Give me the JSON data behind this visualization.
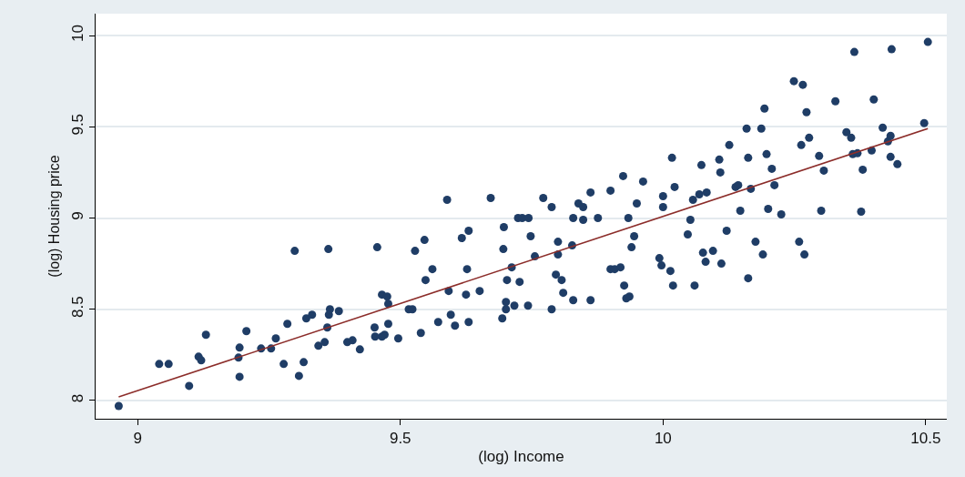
{
  "chart_data": {
    "type": "scatter",
    "xlabel": "(log) Income",
    "ylabel": "(log) Housing price",
    "xlim": [
      8.92,
      10.54
    ],
    "ylim": [
      7.9,
      10.12
    ],
    "xticks": [
      9,
      9.5,
      10,
      10.5
    ],
    "yticks": [
      8,
      8.5,
      9,
      9.5,
      10
    ],
    "grid": "y",
    "marker": "circle",
    "series": [
      {
        "color": "#1f3d66",
        "x": [
          8.964,
          9.041,
          9.059,
          9.098,
          9.116,
          9.121,
          9.13,
          9.192,
          9.194,
          9.194,
          9.207,
          9.235,
          9.254,
          9.263,
          9.278,
          9.285,
          9.299,
          9.307,
          9.316,
          9.321,
          9.332,
          9.344,
          9.356,
          9.361,
          9.363,
          9.364,
          9.366,
          9.383,
          9.399,
          9.409,
          9.423,
          9.451,
          9.452,
          9.456,
          9.465,
          9.465,
          9.47,
          9.475,
          9.477,
          9.477,
          9.496,
          9.516,
          9.523,
          9.528,
          9.539,
          9.546,
          9.548,
          9.561,
          9.572,
          9.589,
          9.592,
          9.596,
          9.604,
          9.617,
          9.625,
          9.627,
          9.63,
          9.63,
          9.651,
          9.672,
          9.694,
          9.696,
          9.697,
          9.701,
          9.701,
          9.703,
          9.712,
          9.717,
          9.724,
          9.727,
          9.732,
          9.743,
          9.744,
          9.748,
          9.756,
          9.772,
          9.788,
          9.788,
          9.796,
          9.8,
          9.8,
          9.807,
          9.81,
          9.829,
          9.827,
          9.829,
          9.839,
          9.848,
          9.848,
          9.862,
          9.862,
          9.876,
          9.9,
          9.9,
          9.908,
          9.919,
          9.924,
          9.926,
          9.93,
          9.934,
          9.936,
          9.94,
          9.945,
          9.95,
          9.962,
          9.993,
          9.997,
          10,
          10,
          10.017,
          10.022,
          10.014,
          10.019,
          10.047,
          10.052,
          10.057,
          10.06,
          10.069,
          10.073,
          10.076,
          10.081,
          10.083,
          10.095,
          10.107,
          10.109,
          10.111,
          10.121,
          10.126,
          10.138,
          10.143,
          10.147,
          10.159,
          10.162,
          10.162,
          10.167,
          10.176,
          10.187,
          10.19,
          10.193,
          10.197,
          10.2,
          10.207,
          10.212,
          10.225,
          10.249,
          10.259,
          10.263,
          10.266,
          10.273,
          10.269,
          10.278,
          10.297,
          10.301,
          10.306,
          10.328,
          10.349,
          10.358,
          10.361,
          10.364,
          10.37,
          10.377,
          10.38,
          10.397,
          10.401,
          10.418,
          10.428,
          10.433,
          10.433,
          10.435,
          10.446,
          10.497,
          10.504
        ],
        "values": [
          7.97,
          8.2,
          8.2,
          8.08,
          8.24,
          8.22,
          8.36,
          8.235,
          8.29,
          8.13,
          8.38,
          8.285,
          8.285,
          8.34,
          8.2,
          8.42,
          8.82,
          8.135,
          8.21,
          8.45,
          8.47,
          8.3,
          8.32,
          8.4,
          8.83,
          8.47,
          8.5,
          8.49,
          8.32,
          8.33,
          8.28,
          8.4,
          8.35,
          8.84,
          8.58,
          8.35,
          8.36,
          8.57,
          8.53,
          8.42,
          8.34,
          8.5,
          8.5,
          8.82,
          8.37,
          8.88,
          8.66,
          8.72,
          8.43,
          9.1,
          8.6,
          8.47,
          8.41,
          8.89,
          8.58,
          8.72,
          8.93,
          8.43,
          8.6,
          9.11,
          8.45,
          8.83,
          8.95,
          8.54,
          8.5,
          8.66,
          8.73,
          8.52,
          9,
          8.65,
          9,
          8.52,
          9,
          8.9,
          8.79,
          9.11,
          9.06,
          8.5,
          8.69,
          8.8,
          8.87,
          8.66,
          8.59,
          8.55,
          8.85,
          9,
          9.08,
          8.99,
          9.06,
          8.55,
          9.14,
          9,
          9.15,
          8.72,
          8.72,
          8.73,
          9.23,
          8.63,
          8.56,
          9,
          8.57,
          8.84,
          8.9,
          9.08,
          9.2,
          8.78,
          8.74,
          9.06,
          9.12,
          9.33,
          9.17,
          8.71,
          8.63,
          8.91,
          8.99,
          9.1,
          8.63,
          9.13,
          9.29,
          8.81,
          8.76,
          9.14,
          8.82,
          9.32,
          9.25,
          8.75,
          8.93,
          9.4,
          9.17,
          9.18,
          9.04,
          9.49,
          9.33,
          8.67,
          9.16,
          8.87,
          9.49,
          8.8,
          9.6,
          9.35,
          9.05,
          9.27,
          9.18,
          9.02,
          9.75,
          8.87,
          9.4,
          9.73,
          9.58,
          8.8,
          9.44,
          9.34,
          9.04,
          9.26,
          9.64,
          9.47,
          9.44,
          9.35,
          9.91,
          9.355,
          9.035,
          9.265,
          9.37,
          9.65,
          9.495,
          9.42,
          9.45,
          9.335,
          9.925,
          9.295,
          9.52,
          9.965
        ]
      },
      {
        "type": "line",
        "color": "#8c2d2a",
        "marker": "none",
        "x": [
          8.964,
          10.504
        ],
        "values": [
          8.02,
          9.49
        ]
      }
    ]
  }
}
